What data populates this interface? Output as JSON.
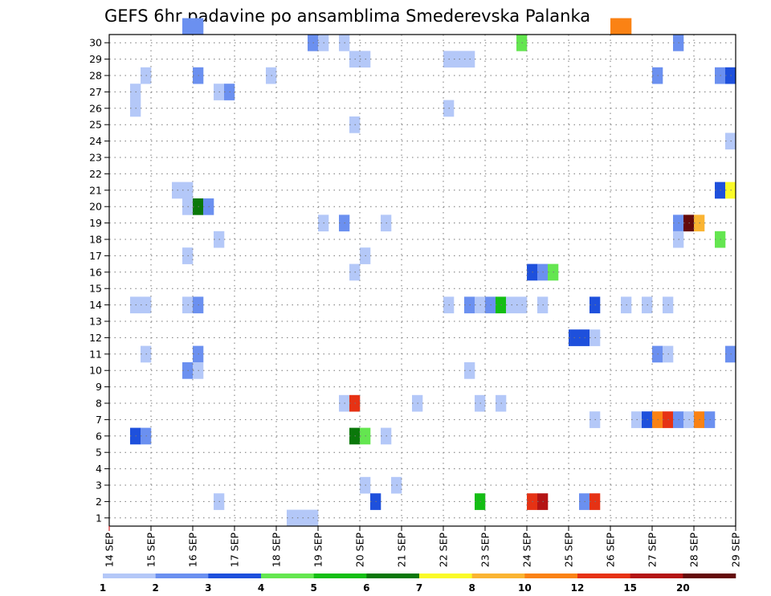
{
  "chart_data": {
    "type": "heatmap",
    "title": "GEFS 6hr padavine po ansamblima Smederevska Palanka",
    "xlabel": "",
    "ylabel": "",
    "x_tick_labels": [
      "14 SEP",
      "15 SEP",
      "16 SEP",
      "17 SEP",
      "18 SEP",
      "19 SEP",
      "20 SEP",
      "21 SEP",
      "22 SEP",
      "23 SEP",
      "24 SEP",
      "25 SEP",
      "26 SEP",
      "27 SEP",
      "28 SEP",
      "29 SEP"
    ],
    "y_tick_labels": [
      "1",
      "2",
      "3",
      "4",
      "5",
      "6",
      "7",
      "8",
      "9",
      "10",
      "11",
      "12",
      "13",
      "14",
      "15",
      "16",
      "17",
      "18",
      "19",
      "20",
      "21",
      "22",
      "23",
      "24",
      "25",
      "26",
      "27",
      "28",
      "29",
      "30"
    ],
    "x_range_steps": [
      0,
      60
    ],
    "y_range": [
      0,
      30
    ],
    "steps_per_day": 4,
    "grid": true,
    "legend_position": "bottom",
    "color_scale": [
      {
        "color": "#b4c8f8",
        "from": "1",
        "to": "2"
      },
      {
        "color": "#6b90f0",
        "from": "2",
        "to": "3"
      },
      {
        "color": "#1e50dc",
        "from": "3",
        "to": "4"
      },
      {
        "color": "#64e650",
        "from": "4",
        "to": "5"
      },
      {
        "color": "#14be14",
        "from": "5",
        "to": "6"
      },
      {
        "color": "#0a780a",
        "from": "6",
        "to": "7"
      },
      {
        "color": "#fafa28",
        "from": "7",
        "to": "8"
      },
      {
        "color": "#fab432",
        "from": "8",
        "to": "10"
      },
      {
        "color": "#fa8214",
        "from": "10",
        "to": "12"
      },
      {
        "color": "#e63214",
        "from": "12",
        "to": "15"
      },
      {
        "color": "#b41414",
        "from": "15",
        "to": "20"
      },
      {
        "color": "#640a0a",
        "from": "20",
        "to": ""
      }
    ],
    "legend_labels": [
      "1",
      "2",
      "3",
      "4",
      "5",
      "6",
      "7",
      "8",
      "10",
      "12",
      "15",
      "20"
    ],
    "cells": [
      {
        "member": 30,
        "step": 7,
        "level": 1
      },
      {
        "member": 30,
        "step": 8,
        "level": 1
      },
      {
        "member": 30,
        "step": 48,
        "level": 8
      },
      {
        "member": 30,
        "step": 49,
        "level": 8
      },
      {
        "member": 29,
        "step": 19,
        "level": 1
      },
      {
        "member": 29,
        "step": 20,
        "level": 0
      },
      {
        "member": 29,
        "step": 22,
        "level": 0
      },
      {
        "member": 29,
        "step": 39,
        "level": 3
      },
      {
        "member": 29,
        "step": 54,
        "level": 1
      },
      {
        "member": 28,
        "step": 23,
        "level": 0
      },
      {
        "member": 28,
        "step": 24,
        "level": 0
      },
      {
        "member": 28,
        "step": 32,
        "level": 0
      },
      {
        "member": 28,
        "step": 33,
        "level": 0
      },
      {
        "member": 28,
        "step": 34,
        "level": 0
      },
      {
        "member": 27,
        "step": 3,
        "level": 0
      },
      {
        "member": 27,
        "step": 8,
        "level": 1
      },
      {
        "member": 27,
        "step": 15,
        "level": 0
      },
      {
        "member": 27,
        "step": 52,
        "level": 1
      },
      {
        "member": 27,
        "step": 58,
        "level": 1
      },
      {
        "member": 27,
        "step": 59,
        "level": 2
      },
      {
        "member": 26,
        "step": 2,
        "level": 0
      },
      {
        "member": 26,
        "step": 10,
        "level": 0
      },
      {
        "member": 26,
        "step": 11,
        "level": 1
      },
      {
        "member": 25,
        "step": 2,
        "level": 0
      },
      {
        "member": 25,
        "step": 32,
        "level": 0
      },
      {
        "member": 24,
        "step": 23,
        "level": 0
      },
      {
        "member": 23,
        "step": 59,
        "level": 0
      },
      {
        "member": 20,
        "step": 6,
        "level": 0
      },
      {
        "member": 20,
        "step": 7,
        "level": 0
      },
      {
        "member": 20,
        "step": 58,
        "level": 2
      },
      {
        "member": 20,
        "step": 59,
        "level": 6
      },
      {
        "member": 19,
        "step": 7,
        "level": 0
      },
      {
        "member": 19,
        "step": 8,
        "level": 5
      },
      {
        "member": 19,
        "step": 9,
        "level": 1
      },
      {
        "member": 18,
        "step": 20,
        "level": 0
      },
      {
        "member": 18,
        "step": 22,
        "level": 1
      },
      {
        "member": 18,
        "step": 26,
        "level": 0
      },
      {
        "member": 18,
        "step": 54,
        "level": 1
      },
      {
        "member": 18,
        "step": 55,
        "level": 11
      },
      {
        "member": 18,
        "step": 56,
        "level": 7
      },
      {
        "member": 17,
        "step": 10,
        "level": 0
      },
      {
        "member": 17,
        "step": 54,
        "level": 0
      },
      {
        "member": 17,
        "step": 58,
        "level": 3
      },
      {
        "member": 16,
        "step": 7,
        "level": 0
      },
      {
        "member": 16,
        "step": 24,
        "level": 0
      },
      {
        "member": 15,
        "step": 23,
        "level": 0
      },
      {
        "member": 15,
        "step": 40,
        "level": 2
      },
      {
        "member": 15,
        "step": 41,
        "level": 1
      },
      {
        "member": 15,
        "step": 42,
        "level": 3
      },
      {
        "member": 13,
        "step": 2,
        "level": 0
      },
      {
        "member": 13,
        "step": 3,
        "level": 0
      },
      {
        "member": 13,
        "step": 7,
        "level": 0
      },
      {
        "member": 13,
        "step": 8,
        "level": 1
      },
      {
        "member": 13,
        "step": 32,
        "level": 0
      },
      {
        "member": 13,
        "step": 34,
        "level": 1
      },
      {
        "member": 13,
        "step": 35,
        "level": 0
      },
      {
        "member": 13,
        "step": 36,
        "level": 1
      },
      {
        "member": 13,
        "step": 37,
        "level": 4
      },
      {
        "member": 13,
        "step": 38,
        "level": 0
      },
      {
        "member": 13,
        "step": 39,
        "level": 0
      },
      {
        "member": 13,
        "step": 41,
        "level": 0
      },
      {
        "member": 13,
        "step": 46,
        "level": 2
      },
      {
        "member": 13,
        "step": 49,
        "level": 0
      },
      {
        "member": 13,
        "step": 51,
        "level": 0
      },
      {
        "member": 13,
        "step": 53,
        "level": 0
      },
      {
        "member": 11,
        "step": 44,
        "level": 2
      },
      {
        "member": 11,
        "step": 45,
        "level": 2
      },
      {
        "member": 11,
        "step": 46,
        "level": 0
      },
      {
        "member": 10,
        "step": 3,
        "level": 0
      },
      {
        "member": 10,
        "step": 8,
        "level": 1
      },
      {
        "member": 10,
        "step": 52,
        "level": 1
      },
      {
        "member": 10,
        "step": 53,
        "level": 0
      },
      {
        "member": 10,
        "step": 59,
        "level": 1
      },
      {
        "member": 9,
        "step": 7,
        "level": 1
      },
      {
        "member": 9,
        "step": 8,
        "level": 0
      },
      {
        "member": 9,
        "step": 34,
        "level": 0
      },
      {
        "member": 7,
        "step": 22,
        "level": 0
      },
      {
        "member": 7,
        "step": 23,
        "level": 9
      },
      {
        "member": 7,
        "step": 29,
        "level": 0
      },
      {
        "member": 7,
        "step": 35,
        "level": 0
      },
      {
        "member": 7,
        "step": 37,
        "level": 0
      },
      {
        "member": 6,
        "step": 46,
        "level": 0
      },
      {
        "member": 6,
        "step": 50,
        "level": 0
      },
      {
        "member": 6,
        "step": 51,
        "level": 2
      },
      {
        "member": 6,
        "step": 52,
        "level": 8
      },
      {
        "member": 6,
        "step": 53,
        "level": 9
      },
      {
        "member": 6,
        "step": 54,
        "level": 1
      },
      {
        "member": 6,
        "step": 55,
        "level": 0
      },
      {
        "member": 6,
        "step": 56,
        "level": 8
      },
      {
        "member": 6,
        "step": 57,
        "level": 1
      },
      {
        "member": 5,
        "step": 2,
        "level": 2
      },
      {
        "member": 5,
        "step": 3,
        "level": 1
      },
      {
        "member": 5,
        "step": 23,
        "level": 5
      },
      {
        "member": 5,
        "step": 24,
        "level": 3
      },
      {
        "member": 5,
        "step": 26,
        "level": 0
      },
      {
        "member": 2,
        "step": 24,
        "level": 0
      },
      {
        "member": 2,
        "step": 27,
        "level": 0
      },
      {
        "member": 1,
        "step": 10,
        "level": 0
      },
      {
        "member": 1,
        "step": 25,
        "level": 2
      },
      {
        "member": 1,
        "step": 35,
        "level": 4
      },
      {
        "member": 1,
        "step": 40,
        "level": 9
      },
      {
        "member": 1,
        "step": 41,
        "level": 10
      },
      {
        "member": 1,
        "step": 45,
        "level": 1
      },
      {
        "member": 1,
        "step": 46,
        "level": 9
      },
      {
        "member": 0,
        "step": 17,
        "level": 0
      },
      {
        "member": 0,
        "step": 18,
        "level": 0
      },
      {
        "member": 0,
        "step": 19,
        "level": 0
      }
    ]
  }
}
